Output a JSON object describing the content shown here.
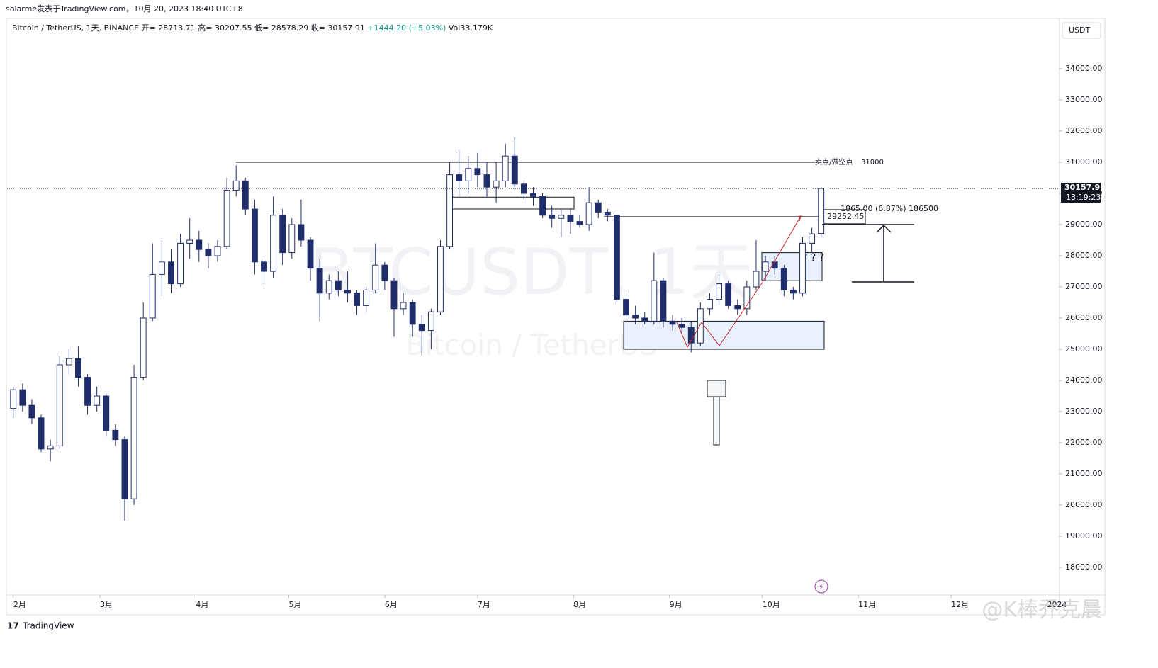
{
  "header": {
    "publisher": "solarme发表于TradingView.com，10月 20, 2023 18:40 UTC+8",
    "symbol": "Bitcoin / TetherUS, 1天, BINANCE",
    "ohlc_labels": [
      "开=",
      "高=",
      "低=",
      "收="
    ],
    "change": "+1444.20 (+5.03%)",
    "volume": "Vol33.179K"
  },
  "chart_data": {
    "type": "candlestick",
    "currency": "USDT",
    "watermark": "BTCUSDT, 1天",
    "watermark_sub": "Bitcoin / TetherUS",
    "x": [
      0,
      3,
      6,
      9,
      12,
      15,
      18,
      21,
      24,
      27,
      30,
      33,
      36,
      39,
      42,
      45,
      48,
      51,
      54,
      57,
      60,
      63,
      66,
      69,
      72,
      75,
      78,
      81,
      84,
      87,
      90,
      93,
      96,
      99,
      102,
      105,
      108,
      111,
      114,
      117,
      120,
      123,
      126,
      129,
      132,
      135,
      138,
      141,
      144,
      147,
      150,
      153,
      156,
      159,
      162,
      165,
      168,
      171,
      174,
      177,
      180,
      183,
      186,
      189,
      192,
      195,
      198,
      201,
      204,
      207,
      210,
      213,
      216,
      219,
      222,
      225,
      228,
      231,
      234,
      237,
      240,
      243,
      246,
      249,
      252,
      255,
      258,
      261
    ],
    "ohlc": [
      [
        23100,
        23800,
        22800,
        23700
      ],
      [
        23700,
        23900,
        23000,
        23200
      ],
      [
        23200,
        23400,
        22600,
        22800
      ],
      [
        22800,
        22900,
        21700,
        21800
      ],
      [
        21800,
        22100,
        21400,
        21900
      ],
      [
        21900,
        24800,
        21800,
        24500
      ],
      [
        24500,
        25000,
        24200,
        24700
      ],
      [
        24700,
        25100,
        23800,
        24100
      ],
      [
        24100,
        24200,
        22900,
        23200
      ],
      [
        23200,
        23800,
        23000,
        23500
      ],
      [
        23500,
        23600,
        22200,
        22400
      ],
      [
        22400,
        22600,
        21900,
        22100
      ],
      [
        22100,
        22200,
        19500,
        20200
      ],
      [
        20200,
        24500,
        20000,
        24100
      ],
      [
        24100,
        26500,
        24000,
        26000
      ],
      [
        26000,
        28400,
        25900,
        27400
      ],
      [
        27400,
        28500,
        26700,
        27800
      ],
      [
        27800,
        28200,
        26800,
        27100
      ],
      [
        27100,
        28700,
        27000,
        28400
      ],
      [
        28400,
        29200,
        27900,
        28500
      ],
      [
        28500,
        28800,
        27800,
        28200
      ],
      [
        28200,
        28400,
        27600,
        28000
      ],
      [
        28000,
        28500,
        27800,
        28300
      ],
      [
        28300,
        30500,
        28200,
        30100
      ],
      [
        30100,
        30900,
        29900,
        30400
      ],
      [
        30400,
        30500,
        29300,
        29500
      ],
      [
        29500,
        29800,
        27400,
        27800
      ],
      [
        27800,
        28000,
        27100,
        27500
      ],
      [
        27500,
        29900,
        27300,
        29300
      ],
      [
        29300,
        29500,
        27700,
        28100
      ],
      [
        28100,
        29200,
        27900,
        29000
      ],
      [
        29000,
        29800,
        28300,
        28500
      ],
      [
        28500,
        28600,
        27200,
        27600
      ],
      [
        27600,
        27900,
        25900,
        26800
      ],
      [
        26800,
        27400,
        26600,
        27200
      ],
      [
        27200,
        27500,
        26700,
        26900
      ],
      [
        26900,
        27500,
        26500,
        26800
      ],
      [
        26800,
        26900,
        26100,
        26400
      ],
      [
        26400,
        27000,
        26200,
        26900
      ],
      [
        26900,
        28400,
        26800,
        27700
      ],
      [
        27700,
        27800,
        26900,
        27200
      ],
      [
        27200,
        27300,
        25400,
        26300
      ],
      [
        26300,
        26800,
        26100,
        26500
      ],
      [
        26500,
        26600,
        25400,
        25800
      ],
      [
        25800,
        26100,
        24800,
        25600
      ],
      [
        25600,
        26300,
        25000,
        26200
      ],
      [
        26200,
        28500,
        26100,
        28300
      ],
      [
        28300,
        31000,
        28200,
        30600
      ],
      [
        30600,
        31400,
        29900,
        30400
      ],
      [
        30400,
        31200,
        30000,
        30800
      ],
      [
        30800,
        31300,
        30200,
        30600
      ],
      [
        30600,
        31000,
        29900,
        30200
      ],
      [
        30200,
        31000,
        29700,
        30400
      ],
      [
        30400,
        31600,
        30200,
        31200
      ],
      [
        31200,
        31800,
        30100,
        30300
      ],
      [
        30300,
        30400,
        29800,
        30000
      ],
      [
        30000,
        30200,
        29600,
        29900
      ],
      [
        29900,
        30000,
        29200,
        29300
      ],
      [
        29300,
        29600,
        28900,
        29200
      ],
      [
        29200,
        29500,
        28600,
        29300
      ],
      [
        29300,
        29500,
        28700,
        29100
      ],
      [
        29100,
        29300,
        28900,
        29000
      ],
      [
        29000,
        30200,
        28800,
        29700
      ],
      [
        29700,
        29800,
        29200,
        29400
      ],
      [
        29400,
        29500,
        29100,
        29300
      ],
      [
        29300,
        29400,
        26500,
        26600
      ],
      [
        26600,
        26800,
        25900,
        26100
      ],
      [
        26100,
        26400,
        25800,
        26000
      ],
      [
        26000,
        26200,
        25800,
        25900
      ],
      [
        25900,
        28100,
        25800,
        27200
      ],
      [
        27200,
        27300,
        25700,
        25900
      ],
      [
        25900,
        26100,
        25600,
        25800
      ],
      [
        25800,
        26000,
        25500,
        25700
      ],
      [
        25700,
        25900,
        24900,
        25200
      ],
      [
        25200,
        26500,
        25100,
        26300
      ],
      [
        26300,
        26800,
        26100,
        26600
      ],
      [
        26600,
        27400,
        26400,
        27100
      ],
      [
        27100,
        27200,
        26300,
        26400
      ],
      [
        26400,
        26600,
        26100,
        26300
      ],
      [
        26300,
        27200,
        26100,
        27000
      ],
      [
        27000,
        28500,
        26900,
        27500
      ],
      [
        27500,
        28000,
        27200,
        27800
      ],
      [
        27800,
        28000,
        27400,
        27600
      ],
      [
        27600,
        27700,
        26700,
        26900
      ],
      [
        26900,
        27000,
        26600,
        26800
      ],
      [
        26800,
        28600,
        26700,
        28400
      ],
      [
        28400,
        28900,
        28100,
        28700
      ],
      [
        28713.71,
        30207.55,
        28578.29,
        30157.91
      ]
    ],
    "up_color": "#ffffff",
    "down_color": "#1f2e6b",
    "edge_color": "#1f2e6b",
    "xlim": [
      -2,
      338
    ],
    "xticks": [
      {
        "value": 0,
        "label": "2月"
      },
      {
        "value": 28,
        "label": "3月"
      },
      {
        "value": 59,
        "label": "4月"
      },
      {
        "value": 89,
        "label": "5月"
      },
      {
        "value": 120,
        "label": "6月"
      },
      {
        "value": 150,
        "label": "7月"
      },
      {
        "value": 181,
        "label": "8月"
      },
      {
        "value": 212,
        "label": "9月"
      },
      {
        "value": 242,
        "label": "10月"
      },
      {
        "value": 273,
        "label": "11月"
      },
      {
        "value": 303,
        "label": "12月"
      },
      {
        "value": 334,
        "label": "2024"
      }
    ],
    "ylim": [
      17114,
      35568
    ],
    "yticks": [
      {
        "value": 18000,
        "label": "18000.00"
      },
      {
        "value": 19000,
        "label": "19000.00"
      },
      {
        "value": 20000,
        "label": "20000.00"
      },
      {
        "value": 21000,
        "label": "21000.00"
      },
      {
        "value": 22000,
        "label": "22000.00"
      },
      {
        "value": 23000,
        "label": "23000.00"
      },
      {
        "value": 24000,
        "label": "24000.00"
      },
      {
        "value": 25000,
        "label": "25000.00"
      },
      {
        "value": 26000,
        "label": "26000.00"
      },
      {
        "value": 27000,
        "label": "27000.00"
      },
      {
        "value": 28000,
        "label": "28000.00"
      },
      {
        "value": 29000,
        "label": "29000.00"
      },
      {
        "value": 30000,
        "label": "30000.00"
      },
      {
        "value": 31000,
        "label": "31000.00"
      },
      {
        "value": 32000,
        "label": "32000.00"
      },
      {
        "value": 33000,
        "label": "33000.00"
      },
      {
        "value": 34000,
        "label": "34000.00"
      }
    ],
    "countdown": "13:19:23",
    "sell_level": {
      "label": "卖点/做空点",
      "value": 31000
    },
    "price_line": 29252.45,
    "measure_text": "1865.00 (6.87%) 186500",
    "question_marks": "? ? ?",
    "zones": [
      {
        "low": 29500,
        "high": 29880
      },
      {
        "low": 27200,
        "high": 28100
      },
      {
        "low": 25000,
        "high": 25900
      }
    ]
  },
  "footer": {
    "brand": "TradingView",
    "credit": "@K棒乔克晨"
  }
}
